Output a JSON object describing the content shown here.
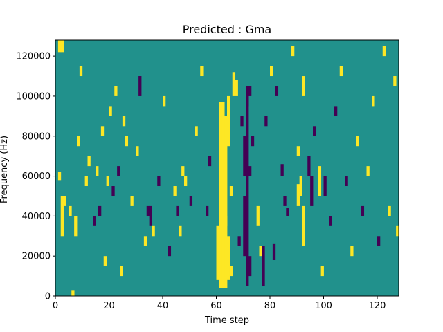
{
  "chart_data": {
    "type": "heatmap",
    "title": "Predicted : Gma",
    "xlabel": "Time step",
    "ylabel": "Frequency (Hz)",
    "xlim": [
      0,
      128
    ],
    "ylim": [
      0,
      128000
    ],
    "x_ticks": [
      0,
      20,
      40,
      60,
      80,
      100,
      120
    ],
    "y_ticks": [
      0,
      20000,
      40000,
      60000,
      80000,
      100000,
      120000
    ],
    "colors": {
      "low": "#440154",
      "mid": "#21918c",
      "high": "#fde725"
    },
    "background_value": 0,
    "grid_shape": {
      "time_steps": 128,
      "frequency_bins": 128
    },
    "bin_width_hz": 1000,
    "cells": [
      {
        "t": 61,
        "f0": 4000,
        "f1": 97000,
        "value": 1
      },
      {
        "t": 62,
        "f0": 4000,
        "f1": 97000,
        "value": 1
      },
      {
        "t": 63,
        "f0": 4000,
        "f1": 90000,
        "value": 1
      },
      {
        "t": 60,
        "f0": 8000,
        "f1": 35000,
        "value": 1
      },
      {
        "t": 64,
        "f0": 8000,
        "f1": 30000,
        "value": 1
      },
      {
        "t": 65,
        "f0": 10000,
        "f1": 15000,
        "value": 1
      },
      {
        "t": 64,
        "f0": 75000,
        "f1": 100000,
        "value": 1
      },
      {
        "t": 65,
        "f0": 50000,
        "f1": 55000,
        "value": 1
      },
      {
        "t": 63,
        "f0": 35000,
        "f1": 40000,
        "value": 1
      },
      {
        "t": 66,
        "f0": 100000,
        "f1": 112000,
        "value": 1
      },
      {
        "t": 67,
        "f0": 100000,
        "f1": 108000,
        "value": 1
      },
      {
        "t": 71,
        "f0": 5000,
        "f1": 100000,
        "value": -1
      },
      {
        "t": 70,
        "f0": 20000,
        "f1": 50000,
        "value": -1
      },
      {
        "t": 72,
        "f0": 10000,
        "f1": 20000,
        "value": -1
      },
      {
        "t": 70,
        "f0": 60000,
        "f1": 80000,
        "value": -1
      },
      {
        "t": 72,
        "f0": 60000,
        "f1": 65000,
        "value": -1
      },
      {
        "t": 69,
        "f0": 85000,
        "f1": 90000,
        "value": -1
      },
      {
        "t": 71,
        "f0": 95000,
        "f1": 105000,
        "value": -1
      },
      {
        "t": 72,
        "f0": 100000,
        "f1": 105000,
        "value": -1
      },
      {
        "t": 73,
        "f0": 75000,
        "f1": 80000,
        "value": -1
      },
      {
        "t": 68,
        "f0": 25000,
        "f1": 30000,
        "value": -1
      },
      {
        "t": 77,
        "f0": 5000,
        "f1": 25000,
        "value": -1
      },
      {
        "t": 76,
        "f0": 20000,
        "f1": 25000,
        "value": 1
      },
      {
        "t": 75,
        "f0": 35000,
        "f1": 45000,
        "value": 1
      },
      {
        "t": 81,
        "f0": 18000,
        "f1": 26000,
        "value": -1
      },
      {
        "t": 84,
        "f0": 60000,
        "f1": 66000,
        "value": -1
      },
      {
        "t": 85,
        "f0": 45000,
        "f1": 50000,
        "value": -1
      },
      {
        "t": 86,
        "f0": 40000,
        "f1": 44000,
        "value": -1
      },
      {
        "t": 90,
        "f0": 45000,
        "f1": 56000,
        "value": 1
      },
      {
        "t": 91,
        "f0": 50000,
        "f1": 60000,
        "value": 1
      },
      {
        "t": 92,
        "f0": 25000,
        "f1": 45000,
        "value": 1
      },
      {
        "t": 94,
        "f0": 60000,
        "f1": 70000,
        "value": -1
      },
      {
        "t": 95,
        "f0": 45000,
        "f1": 60000,
        "value": -1
      },
      {
        "t": 98,
        "f0": 50000,
        "f1": 65000,
        "value": 1
      },
      {
        "t": 99,
        "f0": 10000,
        "f1": 15000,
        "value": 1
      },
      {
        "t": 100,
        "f0": 50000,
        "f1": 60000,
        "value": -1
      },
      {
        "t": 1,
        "f0": 122000,
        "f1": 128000,
        "value": 1
      },
      {
        "t": 2,
        "f0": 122000,
        "f1": 128000,
        "value": 1
      },
      {
        "t": 1,
        "f0": 58000,
        "f1": 62000,
        "value": 1
      },
      {
        "t": 2,
        "f0": 30000,
        "f1": 50000,
        "value": 1
      },
      {
        "t": 6,
        "f0": 0,
        "f1": 3000,
        "value": 1
      },
      {
        "t": 3,
        "f0": 45000,
        "f1": 50000,
        "value": 1
      },
      {
        "t": 5,
        "f0": 40000,
        "f1": 45000,
        "value": 1
      },
      {
        "t": 7,
        "f0": 30000,
        "f1": 40000,
        "value": 1
      },
      {
        "t": 8,
        "f0": 75000,
        "f1": 80000,
        "value": 1
      },
      {
        "t": 9,
        "f0": 110000,
        "f1": 115000,
        "value": 1
      },
      {
        "t": 11,
        "f0": 55000,
        "f1": 60000,
        "value": 1
      },
      {
        "t": 12,
        "f0": 65000,
        "f1": 70000,
        "value": 1
      },
      {
        "t": 14,
        "f0": 35000,
        "f1": 40000,
        "value": -1
      },
      {
        "t": 15,
        "f0": 60000,
        "f1": 65000,
        "value": 1
      },
      {
        "t": 16,
        "f0": 40000,
        "f1": 45000,
        "value": -1
      },
      {
        "t": 17,
        "f0": 80000,
        "f1": 85000,
        "value": 1
      },
      {
        "t": 18,
        "f0": 15000,
        "f1": 20000,
        "value": 1
      },
      {
        "t": 19,
        "f0": 55000,
        "f1": 60000,
        "value": 1
      },
      {
        "t": 20,
        "f0": 90000,
        "f1": 95000,
        "value": 1
      },
      {
        "t": 21,
        "f0": 50000,
        "f1": 55000,
        "value": -1
      },
      {
        "t": 22,
        "f0": 100000,
        "f1": 105000,
        "value": 1
      },
      {
        "t": 23,
        "f0": 60000,
        "f1": 65000,
        "value": -1
      },
      {
        "t": 24,
        "f0": 10000,
        "f1": 15000,
        "value": 1
      },
      {
        "t": 25,
        "f0": 85000,
        "f1": 90000,
        "value": 1
      },
      {
        "t": 26,
        "f0": 75000,
        "f1": 80000,
        "value": 1
      },
      {
        "t": 28,
        "f0": 45000,
        "f1": 50000,
        "value": 1
      },
      {
        "t": 30,
        "f0": 70000,
        "f1": 75000,
        "value": 1
      },
      {
        "t": 31,
        "f0": 100000,
        "f1": 110000,
        "value": -1
      },
      {
        "t": 33,
        "f0": 25000,
        "f1": 30000,
        "value": 1
      },
      {
        "t": 34,
        "f0": 40000,
        "f1": 45000,
        "value": -1
      },
      {
        "t": 35,
        "f0": 35000,
        "f1": 45000,
        "value": -1
      },
      {
        "t": 36,
        "f0": 30000,
        "f1": 35000,
        "value": 1
      },
      {
        "t": 38,
        "f0": 55000,
        "f1": 60000,
        "value": -1
      },
      {
        "t": 40,
        "f0": 95000,
        "f1": 100000,
        "value": 1
      },
      {
        "t": 42,
        "f0": 20000,
        "f1": 25000,
        "value": -1
      },
      {
        "t": 44,
        "f0": 50000,
        "f1": 55000,
        "value": 1
      },
      {
        "t": 45,
        "f0": 40000,
        "f1": 45000,
        "value": -1
      },
      {
        "t": 46,
        "f0": 30000,
        "f1": 35000,
        "value": 1
      },
      {
        "t": 47,
        "f0": 60000,
        "f1": 65000,
        "value": 1
      },
      {
        "t": 48,
        "f0": 55000,
        "f1": 60000,
        "value": 1
      },
      {
        "t": 50,
        "f0": 45000,
        "f1": 50000,
        "value": -1
      },
      {
        "t": 52,
        "f0": 80000,
        "f1": 85000,
        "value": 1
      },
      {
        "t": 54,
        "f0": 110000,
        "f1": 115000,
        "value": 1
      },
      {
        "t": 56,
        "f0": 40000,
        "f1": 45000,
        "value": -1
      },
      {
        "t": 57,
        "f0": 65000,
        "f1": 70000,
        "value": -1
      },
      {
        "t": 78,
        "f0": 85000,
        "f1": 90000,
        "value": -1
      },
      {
        "t": 80,
        "f0": 110000,
        "f1": 115000,
        "value": 1
      },
      {
        "t": 82,
        "f0": 100000,
        "f1": 105000,
        "value": -1
      },
      {
        "t": 88,
        "f0": 120000,
        "f1": 125000,
        "value": 1
      },
      {
        "t": 90,
        "f0": 70000,
        "f1": 75000,
        "value": 1
      },
      {
        "t": 92,
        "f0": 100000,
        "f1": 110000,
        "value": 1
      },
      {
        "t": 96,
        "f0": 80000,
        "f1": 85000,
        "value": -1
      },
      {
        "t": 102,
        "f0": 35000,
        "f1": 40000,
        "value": -1
      },
      {
        "t": 104,
        "f0": 90000,
        "f1": 95000,
        "value": -1
      },
      {
        "t": 106,
        "f0": 110000,
        "f1": 115000,
        "value": 1
      },
      {
        "t": 108,
        "f0": 55000,
        "f1": 60000,
        "value": -1
      },
      {
        "t": 110,
        "f0": 20000,
        "f1": 25000,
        "value": 1
      },
      {
        "t": 112,
        "f0": 75000,
        "f1": 80000,
        "value": 1
      },
      {
        "t": 114,
        "f0": 40000,
        "f1": 45000,
        "value": -1
      },
      {
        "t": 116,
        "f0": 60000,
        "f1": 65000,
        "value": 1
      },
      {
        "t": 118,
        "f0": 95000,
        "f1": 100000,
        "value": 1
      },
      {
        "t": 120,
        "f0": 25000,
        "f1": 30000,
        "value": -1
      },
      {
        "t": 122,
        "f0": 120000,
        "f1": 125000,
        "value": 1
      },
      {
        "t": 124,
        "f0": 40000,
        "f1": 45000,
        "value": 1
      },
      {
        "t": 126,
        "f0": 105000,
        "f1": 110000,
        "value": 1
      },
      {
        "t": 127,
        "f0": 30000,
        "f1": 35000,
        "value": 1
      }
    ]
  }
}
